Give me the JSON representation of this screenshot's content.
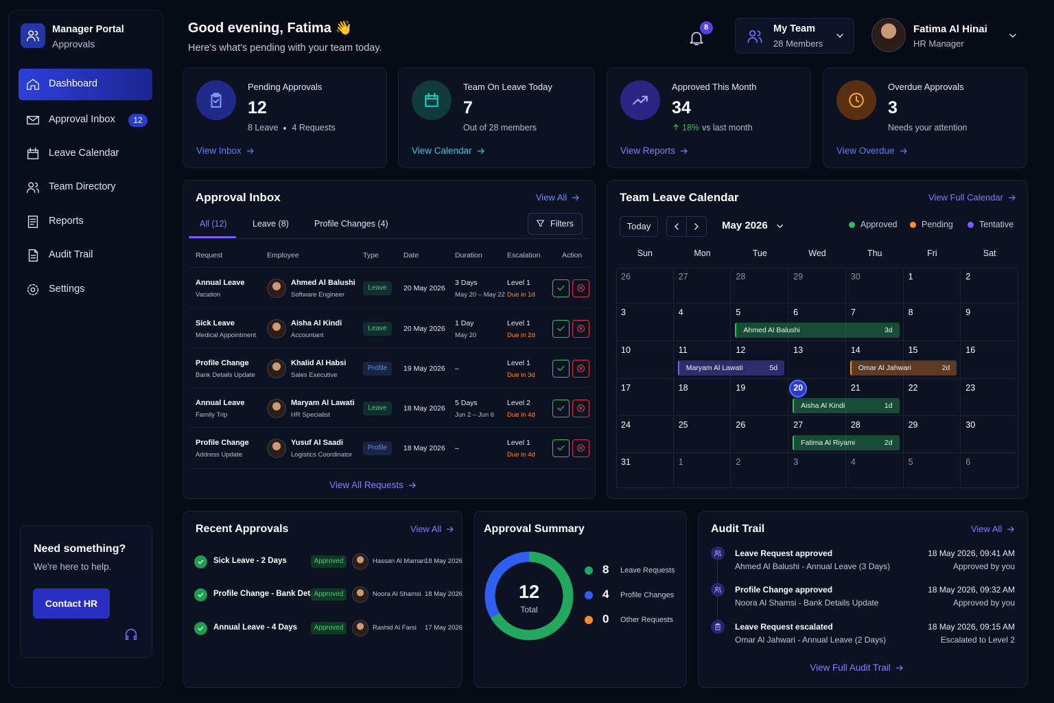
{
  "sidebar": {
    "brand_title": "Manager Portal",
    "brand_subtitle": "Approvals",
    "nav": [
      {
        "label": "Dashboard"
      },
      {
        "label": "Approval Inbox",
        "badge": 12
      },
      {
        "label": "Leave Calendar"
      },
      {
        "label": "Team Directory"
      },
      {
        "label": "Reports"
      },
      {
        "label": "Audit Trail"
      },
      {
        "label": "Settings"
      }
    ],
    "help": {
      "title": "Need something?",
      "text": "We're here to help.",
      "button": "Contact HR"
    }
  },
  "header": {
    "greeting": "Good evening, Fatima 👋",
    "subtitle": "Here's what's pending with your team today.",
    "notifications": 8,
    "team": {
      "name": "My Team",
      "members": "28 Members"
    },
    "user": {
      "name": "Fatima Al Hinai",
      "role": "HR Manager"
    }
  },
  "stats": [
    {
      "label": "Pending Approvals",
      "value": 12,
      "details": [
        "8 Leave",
        "4 Requests"
      ],
      "link": "View Inbox"
    },
    {
      "label": "Team On Leave Today",
      "value": 7,
      "details": [
        "Out of 28 members"
      ],
      "link": "View Calendar"
    },
    {
      "label": "Approved This Month",
      "value": 34,
      "details": [
        "18%",
        "vs last month"
      ],
      "link": "View Reports"
    },
    {
      "label": "Overdue Approvals",
      "value": 3,
      "details": [
        "Needs your attention"
      ],
      "link": "View Overdue"
    }
  ],
  "inbox": {
    "title": "Approval Inbox",
    "view_all": "View All",
    "tabs": [
      "All (12)",
      "Leave (8)",
      "Profile Changes (4)"
    ],
    "filters": "Filters",
    "columns": [
      "Request",
      "Employee",
      "Type",
      "Date",
      "Duration",
      "Escalation",
      "Action"
    ],
    "type_colors": {
      "Leave": "#3ecf7a",
      "Profile": "#5b8cff"
    },
    "rows": [
      {
        "request": "Annual Leave",
        "request_detail": "Vacation",
        "employee": "Ahmed Al Balushi",
        "role": "Software Engineer",
        "type": "Leave",
        "date": "20 May 2026",
        "duration": "3 Days",
        "duration_detail": "May 20 – May 22",
        "level": "Level 1",
        "due": "Due in 1d"
      },
      {
        "request": "Sick Leave",
        "request_detail": "Medical Appointment",
        "employee": "Aisha Al Kindi",
        "role": "Accountant",
        "type": "Leave",
        "date": "20 May 2026",
        "duration": "1 Day",
        "duration_detail": "May 20",
        "level": "Level 1",
        "due": "Due in 2d"
      },
      {
        "request": "Profile Change",
        "request_detail": "Bank Details Update",
        "employee": "Khalid Al Habsi",
        "role": "Sales Executive",
        "type": "Profile",
        "date": "19 May 2026",
        "duration": "–",
        "level": "Level 1",
        "due": "Due in 3d"
      },
      {
        "request": "Annual Leave",
        "request_detail": "Family Trip",
        "employee": "Maryam Al Lawati",
        "role": "HR Specialist",
        "type": "Leave",
        "date": "18 May 2026",
        "duration": "5 Days",
        "duration_detail": "Jun 2 – Jun 6",
        "level": "Level 2",
        "due": "Due in 4d"
      },
      {
        "request": "Profile Change",
        "request_detail": "Address Update",
        "employee": "Yusuf Al Saadi",
        "role": "Logistics Coordinator",
        "type": "Profile",
        "date": "18 May 2026",
        "duration": "–",
        "level": "Level 1",
        "due": "Due in 4d"
      }
    ],
    "footer": "View All Requests"
  },
  "calendar": {
    "title": "Team Leave Calendar",
    "view_full": "View Full Calendar",
    "today": "Today",
    "month": "May 2026",
    "legend": [
      {
        "label": "Approved",
        "color": "#2fbf5f"
      },
      {
        "label": "Pending",
        "color": "#ff8a2a"
      },
      {
        "label": "Tentative",
        "color": "#7a5cff"
      }
    ],
    "weekdays": [
      "Sun",
      "Mon",
      "Tue",
      "Wed",
      "Thu",
      "Fri",
      "Sat"
    ],
    "days": [
      26,
      27,
      28,
      29,
      30,
      1,
      2,
      3,
      4,
      5,
      6,
      7,
      8,
      9,
      10,
      11,
      12,
      13,
      14,
      15,
      16,
      17,
      18,
      19,
      20,
      21,
      22,
      23,
      24,
      25,
      26,
      27,
      28,
      29,
      30,
      31,
      1,
      2,
      3,
      4,
      5,
      6
    ],
    "events": [
      {
        "name": "Ahmed Al Balushi",
        "duration": "3d",
        "color": "#2fbf5f"
      },
      {
        "name": "Maryam Al Lawati",
        "duration": "5d",
        "color": "#7a5cff"
      },
      {
        "name": "Omar Al Jahwari",
        "duration": "2d",
        "color": "#ff8a2a"
      },
      {
        "name": "Aisha Al Kindi",
        "duration": "1d",
        "color": "#2fbf5f"
      },
      {
        "name": "Fatima Al Riyami",
        "duration": "2d",
        "color": "#2fbf5f"
      }
    ]
  },
  "summary": {
    "title": "Approval Summary",
    "total": 12,
    "total_label": "Total",
    "items": [
      {
        "value": 8,
        "label": "Leave Requests",
        "color": "#22a860"
      },
      {
        "value": 4,
        "label": "Profile Changes",
        "color": "#2f5ff0"
      },
      {
        "value": 0,
        "label": "Other Requests",
        "color": "#ff8a2a"
      }
    ]
  },
  "recent": {
    "title": "Recent Approvals",
    "view_all": "View All",
    "items": [
      {
        "title": "Sick Leave - 2 Days",
        "status": "Approved",
        "employee": "Hassan Al Mamari",
        "date": "18 May 2026"
      },
      {
        "title": "Profile Change - Bank Details",
        "status": "Approved",
        "employee": "Noora Al Shamsi",
        "date": "18 May 2026"
      },
      {
        "title": "Annual Leave - 4 Days",
        "status": "Approved",
        "employee": "Rashid Al Farsi",
        "date": "17 May 2026"
      }
    ]
  },
  "audit": {
    "title": "Audit Trail",
    "view_all": "View All",
    "items": [
      {
        "title": "Leave Request approved",
        "detail": "Ahmed Al Balushi - Annual Leave (3 Days)",
        "time": "18 May 2026, 09:41 AM",
        "actor": "Approved by you"
      },
      {
        "title": "Profile Change approved",
        "detail": "Noora Al Shamsi - Bank Details Update",
        "time": "18 May 2026, 09:32 AM",
        "actor": "Approved by you"
      },
      {
        "title": "Leave Request escalated",
        "detail": "Omar Al Jahwari - Annual Leave (2 Days)",
        "time": "18 May 2026, 09:15 AM",
        "actor": "Escalated to Level 2"
      }
    ],
    "footer": "View Full Audit Trail"
  }
}
